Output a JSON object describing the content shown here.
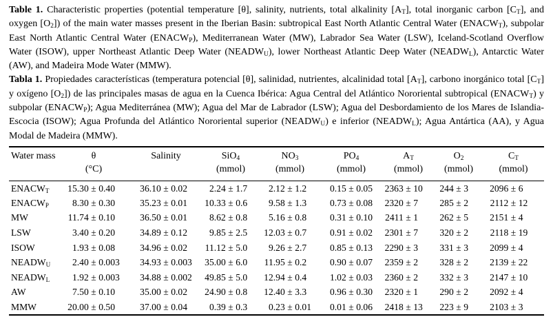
{
  "caption_en": {
    "label": "Table 1.",
    "segments": [
      {
        "t": " Characteristic properties (potential temperature [θ], salinity, nutrients, total alkalinity [A"
      },
      {
        "sub": "T"
      },
      {
        "t": "], total inorganic carbon [C"
      },
      {
        "sub": "T"
      },
      {
        "t": "], and oxygen [O"
      },
      {
        "sub": "2"
      },
      {
        "t": "]) of the main water masses present in the Iberian Basin: subtropical East North Atlantic Central Water (ENACW"
      },
      {
        "sub": "T"
      },
      {
        "t": "), subpolar East North Atlantic Central Water (ENACW"
      },
      {
        "sub": "P"
      },
      {
        "t": "), Mediterranean Water (MW), Labrador Sea Water (LSW), Iceland-Scotland Overflow Water (ISOW), upper Northeast Atlantic Deep Water (NEADW"
      },
      {
        "sub": "U"
      },
      {
        "t": "), lower Northeast Atlantic Deep Water (NEADW"
      },
      {
        "sub": "L"
      },
      {
        "t": "), Antarctic Water (AW), and Madeira Mode Water (MMW)."
      }
    ]
  },
  "caption_es": {
    "label": "Tabla 1.",
    "segments": [
      {
        "t": " Propiedades características (temperatura potencial [θ], salinidad, nutrientes, alcalinidad total [A"
      },
      {
        "sub": "T"
      },
      {
        "t": "], carbono inorgánico total [C"
      },
      {
        "sub": "T"
      },
      {
        "t": "] y oxígeno [O"
      },
      {
        "sub": "2"
      },
      {
        "t": "]) de las principales masas de agua en la Cuenca Ibérica: Agua Central del Atlántico Nororiental subtropical (ENACW"
      },
      {
        "sub": "T"
      },
      {
        "t": ") y subpolar (ENACW"
      },
      {
        "sub": "P"
      },
      {
        "t": "); Agua Mediterránea (MW); Agua del Mar de Labrador (LSW); Agua del Desbordamiento de los Mares de Islandia-Escocia (ISOW); Agua Profunda del Atlántico Nororiental superior (NEADW"
      },
      {
        "sub": "U"
      },
      {
        "t": ") e inferior (NEADW"
      },
      {
        "sub": "L"
      },
      {
        "t": "); Agua Antártica (AA), y Agua Modal de Madeira (MMW)."
      }
    ]
  },
  "table": {
    "columns": [
      {
        "base": "Water mass",
        "sub": "",
        "unit": ""
      },
      {
        "base": "θ",
        "sub": "",
        "unit": "(°C)"
      },
      {
        "base": "Salinity",
        "sub": "",
        "unit": ""
      },
      {
        "base": "SiO",
        "sub": "4",
        "unit": "(mmol)"
      },
      {
        "base": "NO",
        "sub": "3",
        "unit": "(mmol)"
      },
      {
        "base": "PO",
        "sub": "4",
        "unit": "(mmol)"
      },
      {
        "base": "A",
        "sub": "T",
        "unit": "(mmol)"
      },
      {
        "base": "O",
        "sub": "2",
        "unit": "(mmol)"
      },
      {
        "base": "C",
        "sub": "T",
        "unit": "(mmol)"
      }
    ],
    "rows": [
      {
        "base": "ENACW",
        "sub": "T",
        "cells": [
          {
            "v": "15.30",
            "e": "0.40"
          },
          {
            "v": "36.10",
            "e": "0.02"
          },
          {
            "v": "2.24",
            "e": "1.7"
          },
          {
            "v": "2.12",
            "e": "1.2"
          },
          {
            "v": "0.15",
            "e": "0.05"
          },
          {
            "v": "2363",
            "e": "10"
          },
          {
            "v": "244",
            "e": "3"
          },
          {
            "v": "2096",
            "e": "6"
          }
        ]
      },
      {
        "base": "ENACW",
        "sub": "P",
        "cells": [
          {
            "v": "8.30",
            "e": "0.30"
          },
          {
            "v": "35.23",
            "e": "0.01"
          },
          {
            "v": "10.33",
            "e": "0.6"
          },
          {
            "v": "9.58",
            "e": "1.3"
          },
          {
            "v": "0.73",
            "e": "0.08"
          },
          {
            "v": "2320",
            "e": "7"
          },
          {
            "v": "285",
            "e": "2"
          },
          {
            "v": "2112",
            "e": "12"
          }
        ]
      },
      {
        "base": "MW",
        "sub": "",
        "cells": [
          {
            "v": "11.74",
            "e": "0.10"
          },
          {
            "v": "36.50",
            "e": "0.01"
          },
          {
            "v": "8.62",
            "e": "0.8"
          },
          {
            "v": "5.16",
            "e": "0.8"
          },
          {
            "v": "0.31",
            "e": "0.10"
          },
          {
            "v": "2411",
            "e": "1"
          },
          {
            "v": "262",
            "e": "5"
          },
          {
            "v": "2151",
            "e": "4"
          }
        ]
      },
      {
        "base": "LSW",
        "sub": "",
        "cells": [
          {
            "v": "3.40",
            "e": "0.20"
          },
          {
            "v": "34.89",
            "e": "0.12"
          },
          {
            "v": "9.85",
            "e": "2.5"
          },
          {
            "v": "12.03",
            "e": "0.7"
          },
          {
            "v": "0.91",
            "e": "0.02"
          },
          {
            "v": "2301",
            "e": "7"
          },
          {
            "v": "320",
            "e": "2"
          },
          {
            "v": "2118",
            "e": "19"
          }
        ]
      },
      {
        "base": "ISOW",
        "sub": "",
        "cells": [
          {
            "v": "1.93",
            "e": "0.08"
          },
          {
            "v": "34.96",
            "e": "0.02"
          },
          {
            "v": "11.12",
            "e": "5.0"
          },
          {
            "v": "9.26",
            "e": "2.7"
          },
          {
            "v": "0.85",
            "e": "0.13"
          },
          {
            "v": "2290",
            "e": "3"
          },
          {
            "v": "331",
            "e": "3"
          },
          {
            "v": "2099",
            "e": "4"
          }
        ]
      },
      {
        "base": "NEADW",
        "sub": "U",
        "cells": [
          {
            "v": "2.40",
            "e": "0.003"
          },
          {
            "v": "34.93",
            "e": "0.003"
          },
          {
            "v": "35.00",
            "e": "6.0"
          },
          {
            "v": "11.95",
            "e": "0.2"
          },
          {
            "v": "0.90",
            "e": "0.07"
          },
          {
            "v": "2359",
            "e": "2"
          },
          {
            "v": "328",
            "e": "2"
          },
          {
            "v": "2139",
            "e": "22"
          }
        ]
      },
      {
        "base": "NEADW",
        "sub": "L",
        "cells": [
          {
            "v": "1.92",
            "e": "0.003"
          },
          {
            "v": "34.88",
            "e": "0.002"
          },
          {
            "v": "49.85",
            "e": "5.0"
          },
          {
            "v": "12.94",
            "e": "0.4"
          },
          {
            "v": "1.02",
            "e": "0.03"
          },
          {
            "v": "2360",
            "e": "2"
          },
          {
            "v": "332",
            "e": "3"
          },
          {
            "v": "2147",
            "e": "10"
          }
        ]
      },
      {
        "base": "AW",
        "sub": "",
        "cells": [
          {
            "v": "7.50",
            "e": "0.10"
          },
          {
            "v": "35.00",
            "e": "0.02"
          },
          {
            "v": "24.90",
            "e": "0.8"
          },
          {
            "v": "12.40",
            "e": "3.3"
          },
          {
            "v": "0.96",
            "e": "0.30"
          },
          {
            "v": "2320",
            "e": "1"
          },
          {
            "v": "290",
            "e": "2"
          },
          {
            "v": "2092",
            "e": "4"
          }
        ]
      },
      {
        "base": "MMW",
        "sub": "",
        "cells": [
          {
            "v": "20.00",
            "e": "0.50"
          },
          {
            "v": "37.00",
            "e": "0.04"
          },
          {
            "v": "0.39",
            "e": "0.3"
          },
          {
            "v": "0.23",
            "e": "0.01"
          },
          {
            "v": "0.01",
            "e": "0.06"
          },
          {
            "v": "2418",
            "e": "13"
          },
          {
            "v": "223",
            "e": "9"
          },
          {
            "v": "2103",
            "e": "3"
          }
        ]
      }
    ],
    "plus_minus": "±"
  },
  "colors": {
    "text": "#000000",
    "background": "#ffffff",
    "rule": "#000000"
  }
}
